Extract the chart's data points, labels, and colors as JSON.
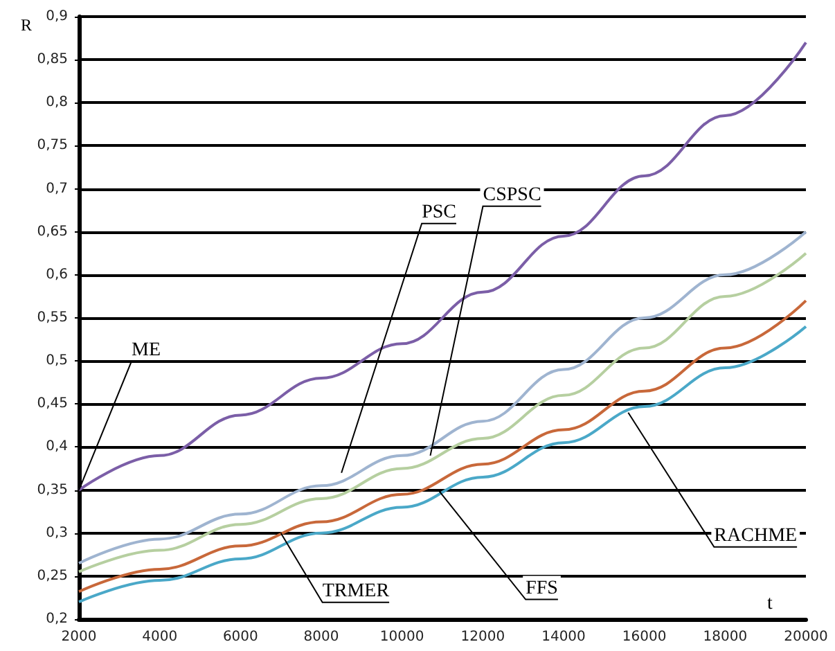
{
  "chart_data": {
    "type": "line",
    "xlabel": "t",
    "ylabel": "R",
    "x": [
      2000,
      4000,
      6000,
      8000,
      10000,
      12000,
      14000,
      16000,
      18000,
      20000
    ],
    "series": [
      {
        "color": "#7b5ea7",
        "values": [
          0.35,
          0.39,
          0.437,
          0.48,
          0.52,
          0.58,
          0.645,
          0.715,
          0.785,
          0.87
        ]
      },
      {
        "color": "#9fb4d0",
        "values": [
          0.265,
          0.293,
          0.322,
          0.355,
          0.39,
          0.43,
          0.49,
          0.55,
          0.6,
          0.65
        ]
      },
      {
        "color": "#b6cfa0",
        "values": [
          0.255,
          0.28,
          0.31,
          0.34,
          0.375,
          0.41,
          0.46,
          0.515,
          0.575,
          0.625
        ]
      },
      {
        "color": "#c8683a",
        "values": [
          0.232,
          0.258,
          0.285,
          0.313,
          0.345,
          0.38,
          0.42,
          0.465,
          0.515,
          0.57
        ]
      },
      {
        "color": "#4aa8c8",
        "values": [
          0.22,
          0.245,
          0.27,
          0.3,
          0.33,
          0.365,
          0.405,
          0.447,
          0.492,
          0.54
        ]
      }
    ],
    "annotations": [
      {
        "text": "ME",
        "x": 2000,
        "y": 0.35
      },
      {
        "text": "PSC",
        "x": 8500,
        "y": 0.37
      },
      {
        "text": "CSPSC",
        "x": 10700,
        "y": 0.39
      },
      {
        "text": "TRMER",
        "x": 7000,
        "y": 0.3
      },
      {
        "text": "FFS",
        "x": 10900,
        "y": 0.35
      },
      {
        "text": "RACHME",
        "x": 15600,
        "y": 0.44
      }
    ],
    "xlim": [
      2000,
      20000
    ],
    "ylim": [
      0.2,
      0.9
    ],
    "xticks": [
      2000,
      4000,
      6000,
      8000,
      10000,
      12000,
      14000,
      16000,
      18000,
      20000
    ],
    "yticks": [
      {
        "value": 0.2,
        "label": "0,2"
      },
      {
        "value": 0.25,
        "label": "0,25"
      },
      {
        "value": 0.3,
        "label": "0,3"
      },
      {
        "value": 0.35,
        "label": "0,35"
      },
      {
        "value": 0.4,
        "label": "0,4"
      },
      {
        "value": 0.45,
        "label": "0,45"
      },
      {
        "value": 0.5,
        "label": "0,5"
      },
      {
        "value": 0.55,
        "label": "0,55"
      },
      {
        "value": 0.6,
        "label": "0,6"
      },
      {
        "value": 0.65,
        "label": "0,65"
      },
      {
        "value": 0.7,
        "label": "0,7"
      },
      {
        "value": 0.75,
        "label": "0,75"
      },
      {
        "value": 0.8,
        "label": "0,8"
      },
      {
        "value": 0.85,
        "label": "0,85"
      },
      {
        "value": 0.9,
        "label": "0,9"
      }
    ],
    "grid": "y",
    "marker": "none",
    "line_style": "solid"
  }
}
